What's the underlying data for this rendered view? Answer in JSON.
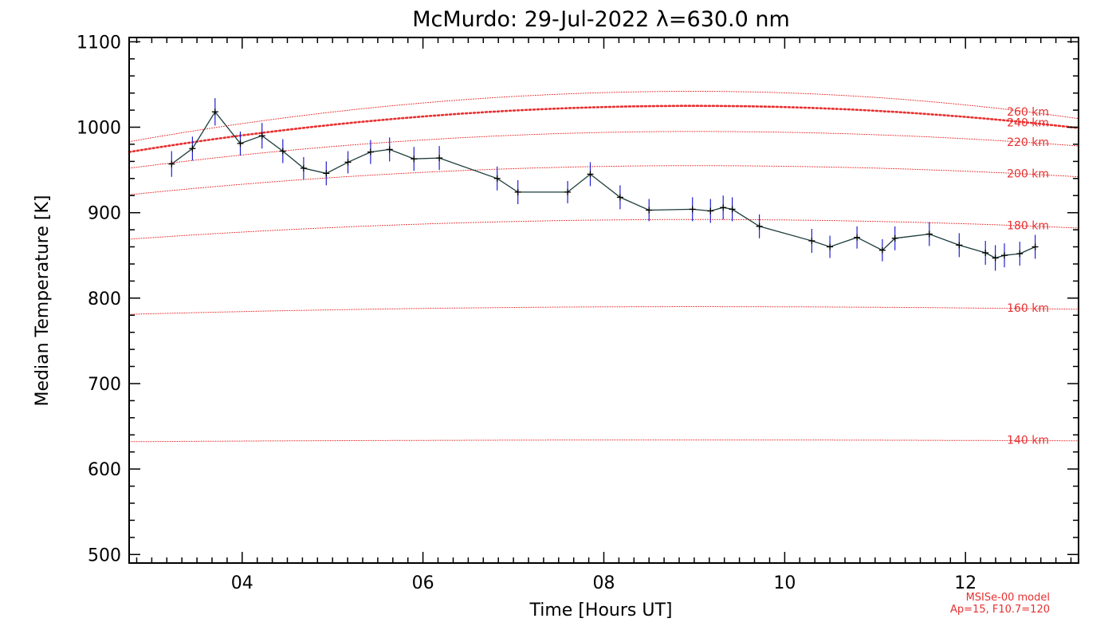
{
  "chart_data": {
    "type": "line",
    "title": "McMurdo: 29-Jul-2022 λ=630.0 nm",
    "xlabel": "Time [Hours UT]",
    "ylabel": "Median Temperature [K]",
    "xlim": [
      2.75,
      13.25
    ],
    "ylim": [
      490,
      1105
    ],
    "x_ticks": [
      4,
      6,
      8,
      10,
      12
    ],
    "x_tick_labels": [
      "04",
      "06",
      "08",
      "10",
      "12"
    ],
    "y_ticks": [
      500,
      600,
      700,
      800,
      900,
      1000,
      1100
    ],
    "y_tick_labels": [
      "500",
      "600",
      "700",
      "800",
      "900",
      "1000",
      "1100"
    ],
    "grid": false,
    "legend": "none",
    "colors": {
      "data_line": "#1a3a3a",
      "error_bar": "#2020d0",
      "marker": "#000000",
      "model": "#e83030"
    },
    "series": [
      {
        "x": [
          3.22,
          3.45,
          3.7,
          3.98,
          4.22,
          4.45,
          4.68,
          4.93,
          5.17,
          5.42,
          5.63,
          5.9,
          6.18,
          6.82,
          7.05,
          7.6,
          7.85,
          8.18,
          8.5,
          8.98,
          9.18,
          9.32,
          9.42,
          9.72,
          10.3,
          10.5,
          10.8,
          11.08,
          11.22,
          11.6,
          11.93,
          12.22,
          12.33,
          12.43,
          12.6,
          12.77
        ],
        "y": [
          957,
          975,
          1018,
          981,
          990,
          972,
          952,
          946,
          959,
          971,
          974,
          963,
          964,
          940,
          924,
          924,
          945,
          918,
          903,
          904,
          902,
          906,
          904,
          884,
          867,
          860,
          871,
          856,
          870,
          875,
          862,
          853,
          847,
          850,
          852,
          860
        ],
        "y_error": [
          15,
          14,
          16,
          14,
          15,
          14,
          13,
          14,
          13,
          14,
          14,
          14,
          14,
          14,
          14,
          13,
          14,
          14,
          13,
          14,
          14,
          14,
          14,
          14,
          14,
          13,
          13,
          13,
          14,
          14,
          14,
          14,
          15,
          14,
          14,
          14
        ]
      }
    ],
    "model_curves": [
      {
        "label": "140 km",
        "y_start": 632,
        "y_peak": 634,
        "y_end": 633
      },
      {
        "label": "160 km",
        "y_start": 781,
        "y_peak": 790,
        "y_end": 787
      },
      {
        "label": "180 km",
        "y_start": 869,
        "y_peak": 892,
        "y_end": 882
      },
      {
        "label": "200 km",
        "y_start": 921,
        "y_peak": 955,
        "y_end": 942
      },
      {
        "label": "220 km",
        "y_start": 952,
        "y_peak": 995,
        "y_end": 978
      },
      {
        "label": "240 km",
        "y_start": 971,
        "y_peak": 1025,
        "y_end": 999,
        "bold": true
      },
      {
        "label": "260 km",
        "y_start": 983,
        "y_peak": 1042,
        "y_end": 1010
      }
    ],
    "model_peak_x": 9.0,
    "model_note_lines": [
      "MSISe-00 model",
      "Ap=15, F10.7=120"
    ]
  }
}
